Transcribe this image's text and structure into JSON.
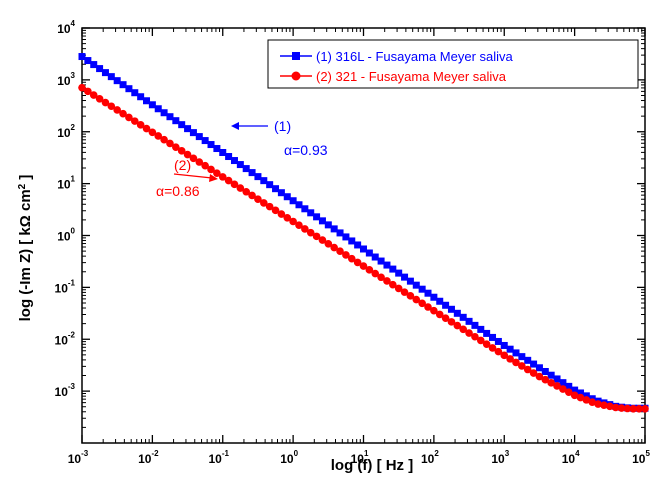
{
  "chart_data": {
    "type": "scatter",
    "x_scale": "log",
    "y_scale": "log",
    "xlabel": "log (f) [ Hz ]",
    "ylabel_main": "log (-Im Z) [ kΩ cm",
    "ylabel_sup": "2",
    "ylabel_end": " ]",
    "xlim": [
      0.001,
      100000
    ],
    "ylim": [
      0.0001,
      10000
    ],
    "x_ticks": [
      {
        "base": "10",
        "exp": "-3",
        "value": 0.001
      },
      {
        "base": "10",
        "exp": "-2",
        "value": 0.01
      },
      {
        "base": "10",
        "exp": "-1",
        "value": 0.1
      },
      {
        "base": "10",
        "exp": "0",
        "value": 1
      },
      {
        "base": "10",
        "exp": "1",
        "value": 10
      },
      {
        "base": "10",
        "exp": "2",
        "value": 100
      },
      {
        "base": "10",
        "exp": "3",
        "value": 1000
      },
      {
        "base": "10",
        "exp": "4",
        "value": 10000
      },
      {
        "base": "10",
        "exp": "5",
        "value": 100000
      }
    ],
    "y_ticks": [
      {
        "base": "10",
        "exp": "-3",
        "value": 0.001
      },
      {
        "base": "10",
        "exp": "-2",
        "value": 0.01
      },
      {
        "base": "10",
        "exp": "-1",
        "value": 0.1
      },
      {
        "base": "10",
        "exp": "0",
        "value": 1
      },
      {
        "base": "10",
        "exp": "1",
        "value": 10
      },
      {
        "base": "10",
        "exp": "2",
        "value": 100
      },
      {
        "base": "10",
        "exp": "3",
        "value": 1000
      },
      {
        "base": "10",
        "exp": "4",
        "value": 10000
      }
    ],
    "legend_position": "top-right",
    "series": [
      {
        "name": "(1) 316L - Fusayama Meyer saliva",
        "color": "#0000ff",
        "marker": "square",
        "alpha_label": "α=0.93",
        "arrow_label": "(1)",
        "x_log": [
          -3,
          -2,
          -1,
          0,
          1,
          2,
          3,
          3.5,
          4,
          4.3,
          4.6,
          4.8,
          5
        ],
        "y_log": [
          3.45,
          2.52,
          1.6,
          0.67,
          -0.26,
          -1.19,
          -2.12,
          -2.55,
          -2.98,
          -3.18,
          -3.3,
          -3.33,
          -3.33
        ]
      },
      {
        "name": "(2) 321 - Fusayama Meyer saliva",
        "color": "#ff0000",
        "marker": "circle",
        "alpha_label": "α=0.86",
        "arrow_label": "(2)",
        "x_log": [
          -3,
          -2,
          -1,
          0,
          1,
          2,
          3,
          3.5,
          4,
          4.3,
          4.6,
          4.8,
          5
        ],
        "y_log": [
          2.85,
          1.99,
          1.13,
          0.27,
          -0.59,
          -1.45,
          -2.31,
          -2.72,
          -3.08,
          -3.24,
          -3.32,
          -3.34,
          -3.34
        ]
      }
    ]
  }
}
